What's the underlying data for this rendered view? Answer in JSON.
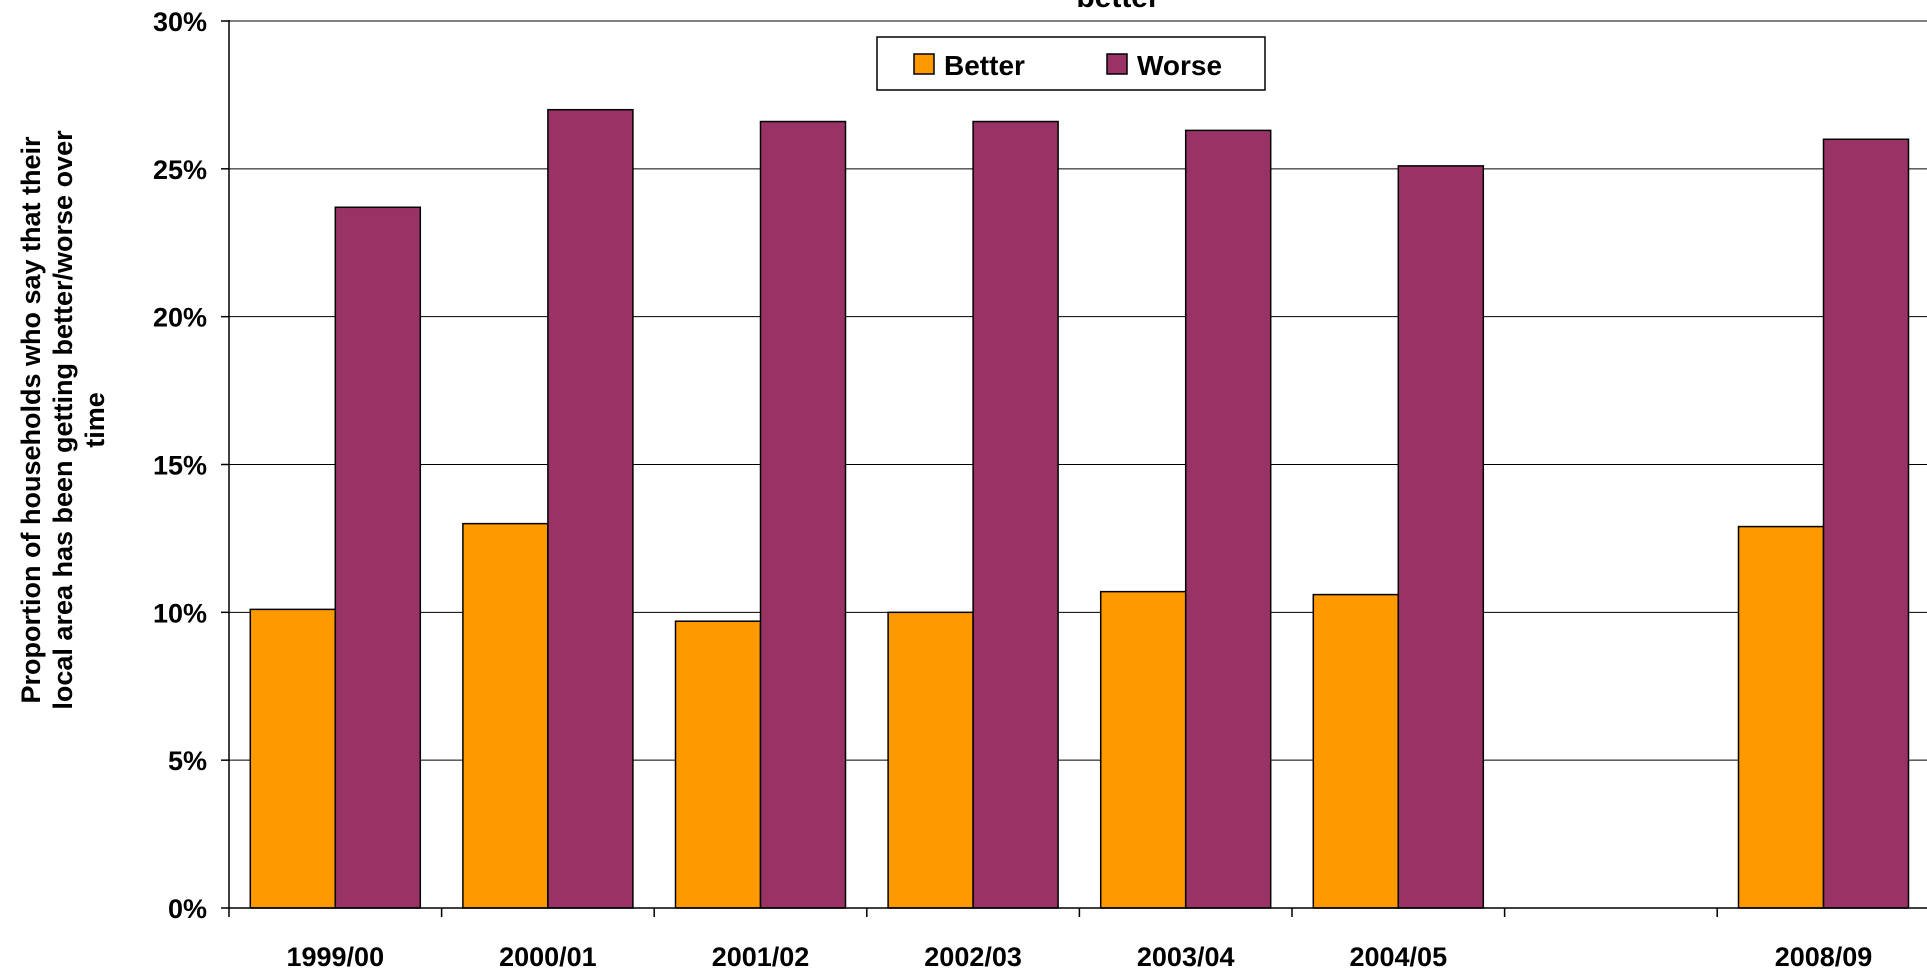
{
  "chart_data": {
    "type": "bar",
    "title": "better",
    "ylabel": [
      "Proportion of households who say that their",
      "local area has been getting better/worse over",
      "time"
    ],
    "xlabel": "",
    "categories": [
      "1999/00",
      "2000/01",
      "2001/02",
      "2002/03",
      "2003/04",
      "2004/05",
      "",
      "2008/09"
    ],
    "series": [
      {
        "name": "Better",
        "color": "#FF9900",
        "values": [
          10.1,
          13.0,
          9.7,
          10.0,
          10.7,
          10.6,
          null,
          12.9
        ]
      },
      {
        "name": "Worse",
        "color": "#993366",
        "values": [
          23.7,
          27.0,
          26.6,
          26.6,
          26.3,
          25.1,
          null,
          26.0
        ]
      }
    ],
    "ylim": [
      0,
      30
    ],
    "yticks": [
      0,
      5,
      10,
      15,
      20,
      25,
      30
    ],
    "ytick_labels": [
      "0%",
      "5%",
      "10%",
      "15%",
      "20%",
      "25%",
      "30%"
    ],
    "grid": true,
    "legend_position": "top-center"
  }
}
